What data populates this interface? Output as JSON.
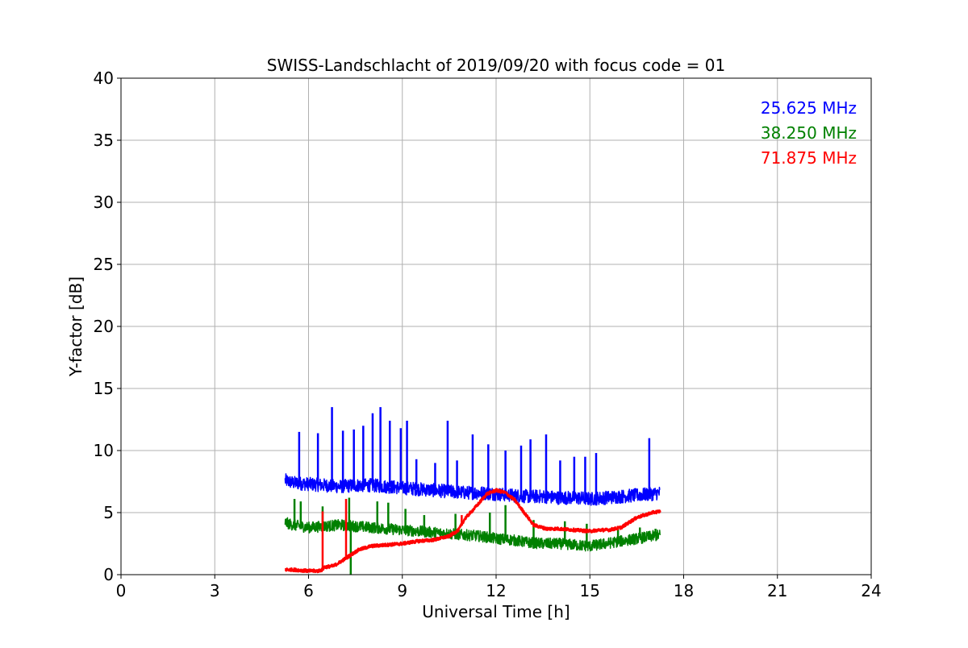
{
  "chart_data": {
    "type": "line",
    "title": "SWISS-Landschlacht of 2019/09/20 with focus code = 01",
    "xlabel": "Universal Time [h]",
    "ylabel": "Y-factor [dB]",
    "xlim": [
      0,
      24
    ],
    "ylim": [
      0,
      40
    ],
    "xticks": [
      0,
      3,
      6,
      9,
      12,
      15,
      18,
      21,
      24
    ],
    "yticks": [
      0,
      5,
      10,
      15,
      20,
      25,
      30,
      35,
      40
    ],
    "grid": true,
    "legend_position": "top-right",
    "series": [
      {
        "name": "25.625 MHz",
        "color": "#0000ff",
        "x": [
          5.25,
          5.5,
          6.0,
          6.5,
          7.0,
          7.5,
          8.0,
          8.5,
          9.0,
          9.5,
          10.0,
          10.5,
          11.0,
          11.5,
          12.0,
          12.5,
          13.0,
          13.5,
          14.0,
          14.5,
          15.0,
          15.5,
          16.0,
          16.5,
          17.0,
          17.25
        ],
        "y": [
          7.6,
          7.4,
          7.3,
          7.2,
          7.1,
          7.2,
          7.2,
          7.1,
          7.0,
          6.9,
          6.8,
          6.7,
          6.6,
          6.6,
          6.5,
          6.4,
          6.3,
          6.3,
          6.2,
          6.2,
          6.1,
          6.2,
          6.3,
          6.4,
          6.5,
          6.6
        ],
        "spikes": [
          [
            5.7,
            11.5
          ],
          [
            6.3,
            11.4
          ],
          [
            6.75,
            13.5
          ],
          [
            7.1,
            11.6
          ],
          [
            7.45,
            11.7
          ],
          [
            7.75,
            12.0
          ],
          [
            8.05,
            13.0
          ],
          [
            8.3,
            13.5
          ],
          [
            8.6,
            12.4
          ],
          [
            8.95,
            11.8
          ],
          [
            9.15,
            12.4
          ],
          [
            9.45,
            9.3
          ],
          [
            10.45,
            12.4
          ],
          [
            10.05,
            9.0
          ],
          [
            10.75,
            9.2
          ],
          [
            11.25,
            11.3
          ],
          [
            11.75,
            10.5
          ],
          [
            12.3,
            10.0
          ],
          [
            12.8,
            10.4
          ],
          [
            13.1,
            10.9
          ],
          [
            13.6,
            11.3
          ],
          [
            14.05,
            9.2
          ],
          [
            14.5,
            9.5
          ],
          [
            14.85,
            9.5
          ],
          [
            15.2,
            9.8
          ],
          [
            16.9,
            11.0
          ]
        ]
      },
      {
        "name": "38.250 MHz",
        "color": "#008000",
        "x": [
          5.25,
          5.5,
          6.0,
          6.5,
          7.0,
          7.5,
          8.0,
          8.5,
          9.0,
          9.5,
          10.0,
          10.5,
          11.0,
          11.5,
          12.0,
          12.5,
          13.0,
          13.5,
          14.0,
          14.5,
          15.0,
          15.5,
          16.0,
          16.5,
          17.0,
          17.25
        ],
        "y": [
          4.2,
          4.0,
          3.8,
          3.9,
          4.0,
          3.9,
          3.8,
          3.7,
          3.6,
          3.5,
          3.4,
          3.3,
          3.2,
          3.1,
          2.9,
          2.8,
          2.6,
          2.5,
          2.5,
          2.4,
          2.3,
          2.5,
          2.7,
          2.9,
          3.1,
          3.2
        ],
        "spikes": [
          [
            5.55,
            6.1
          ],
          [
            5.75,
            5.9
          ],
          [
            6.45,
            5.5
          ],
          [
            7.3,
            6.2
          ],
          [
            7.35,
            0.0
          ],
          [
            8.2,
            5.9
          ],
          [
            8.55,
            5.8
          ],
          [
            9.1,
            5.3
          ],
          [
            9.7,
            4.8
          ],
          [
            10.7,
            4.9
          ],
          [
            11.8,
            5.0
          ],
          [
            12.3,
            5.6
          ],
          [
            13.2,
            4.4
          ],
          [
            14.2,
            4.3
          ],
          [
            14.9,
            4.1
          ],
          [
            15.9,
            3.9
          ],
          [
            16.6,
            3.8
          ],
          [
            17.1,
            3.7
          ]
        ]
      },
      {
        "name": "71.875 MHz",
        "color": "#ff0000",
        "x": [
          5.25,
          5.5,
          6.0,
          6.3,
          6.45,
          6.5,
          6.8,
          7.0,
          7.3,
          7.6,
          8.0,
          8.5,
          9.0,
          9.5,
          10.0,
          10.5,
          10.8,
          11.0,
          11.4,
          11.7,
          12.0,
          12.3,
          12.6,
          12.9,
          13.2,
          13.6,
          14.0,
          14.5,
          15.0,
          15.3,
          15.6,
          16.0,
          16.5,
          17.0,
          17.25
        ],
        "y": [
          0.4,
          0.4,
          0.3,
          0.3,
          0.4,
          0.6,
          0.7,
          1.0,
          1.5,
          2.0,
          2.3,
          2.4,
          2.5,
          2.7,
          2.8,
          3.1,
          3.6,
          4.5,
          5.6,
          6.5,
          6.8,
          6.6,
          6.0,
          5.0,
          4.0,
          3.7,
          3.7,
          3.6,
          3.5,
          3.6,
          3.6,
          3.8,
          4.6,
          5.0,
          5.1
        ],
        "spikes": [
          [
            6.45,
            5.1
          ],
          [
            7.2,
            6.1
          ],
          [
            10.9,
            4.8
          ]
        ]
      }
    ]
  }
}
